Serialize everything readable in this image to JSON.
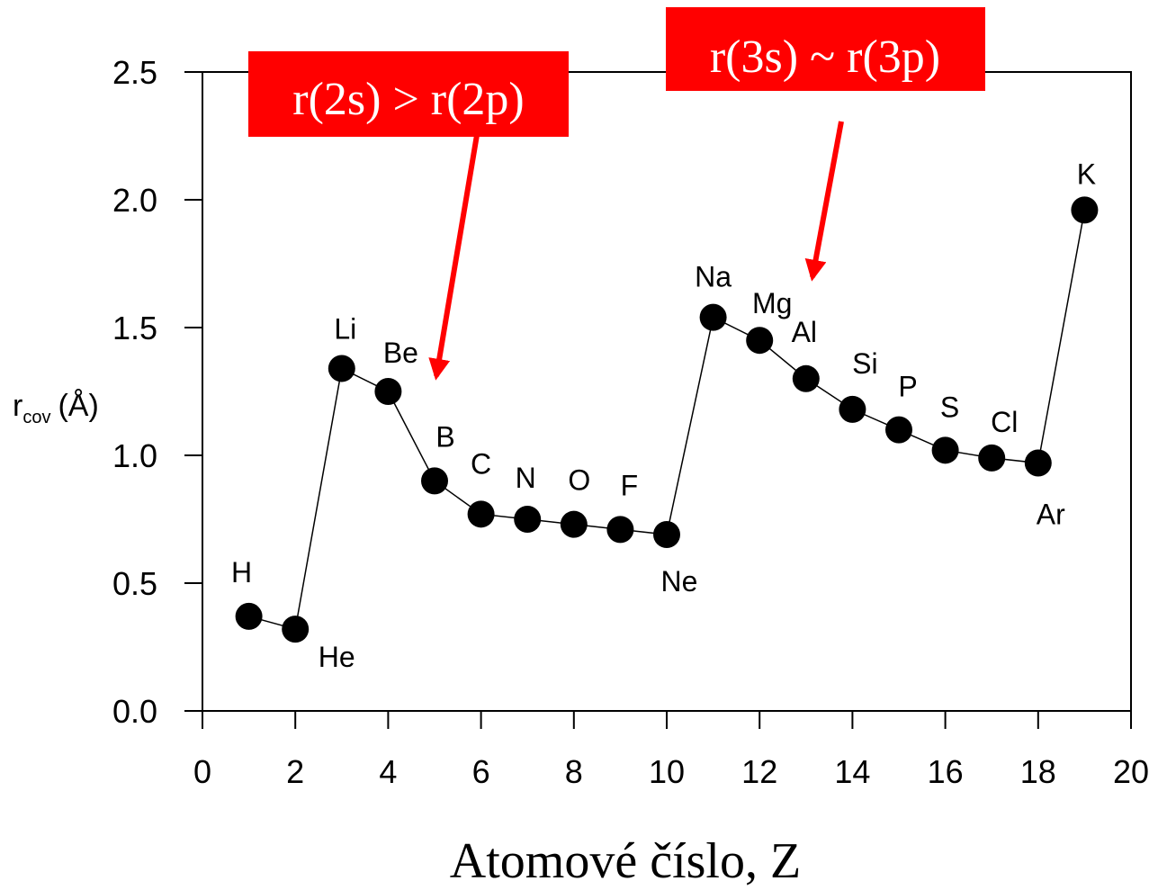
{
  "chart_data": {
    "type": "line",
    "xlabel": "Atomové číslo, Z",
    "ylabel": {
      "main": "r",
      "sub": "cov",
      "unit": "(Å)"
    },
    "xlim": [
      0,
      20
    ],
    "ylim": [
      0,
      2.5
    ],
    "xticks": [
      "0",
      "2",
      "4",
      "6",
      "8",
      "10",
      "12",
      "14",
      "16",
      "18",
      "20"
    ],
    "yticks": [
      "0.0",
      "0.5",
      "1.0",
      "1.5",
      "2.0",
      "2.5"
    ],
    "grid": false,
    "points": [
      {
        "element": "H",
        "x": 1,
        "y": 0.37
      },
      {
        "element": "He",
        "x": 2,
        "y": 0.32
      },
      {
        "element": "Li",
        "x": 3,
        "y": 1.34
      },
      {
        "element": "Be",
        "x": 4,
        "y": 1.25
      },
      {
        "element": "B",
        "x": 5,
        "y": 0.9
      },
      {
        "element": "C",
        "x": 6,
        "y": 0.77
      },
      {
        "element": "N",
        "x": 7,
        "y": 0.75
      },
      {
        "element": "O",
        "x": 8,
        "y": 0.73
      },
      {
        "element": "F",
        "x": 9,
        "y": 0.71
      },
      {
        "element": "Ne",
        "x": 10,
        "y": 0.69
      },
      {
        "element": "Na",
        "x": 11,
        "y": 1.54
      },
      {
        "element": "Mg",
        "x": 12,
        "y": 1.45
      },
      {
        "element": "Al",
        "x": 13,
        "y": 1.3
      },
      {
        "element": "Si",
        "x": 14,
        "y": 1.18
      },
      {
        "element": "P",
        "x": 15,
        "y": 1.1
      },
      {
        "element": "S",
        "x": 16,
        "y": 1.02
      },
      {
        "element": "Cl",
        "x": 17,
        "y": 0.99
      },
      {
        "element": "Ar",
        "x": 18,
        "y": 0.97
      },
      {
        "element": "K",
        "x": 19,
        "y": 1.96
      }
    ],
    "annotations": [
      {
        "text": "r(2s) > r(2p)",
        "points_to_element": "B"
      },
      {
        "text": "r(3s) ~ r(3p)",
        "points_to_element": "Al"
      }
    ],
    "colors": {
      "markers": "#000000",
      "annotation_box": "#ff0000",
      "annotation_text": "#ffffff",
      "arrow": "#ff0000"
    }
  }
}
